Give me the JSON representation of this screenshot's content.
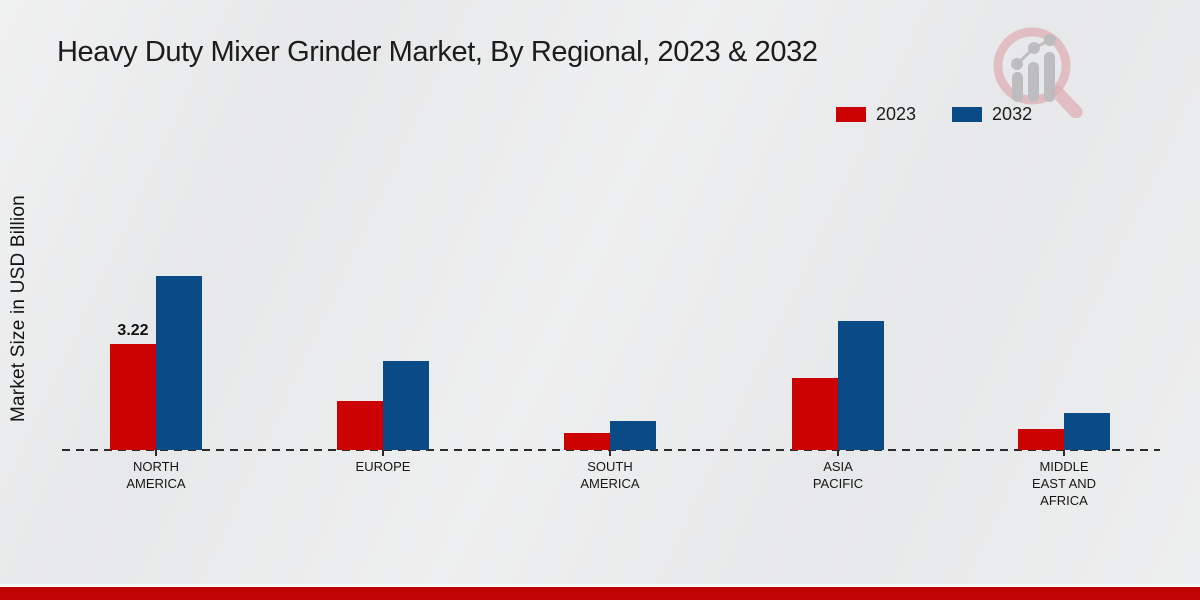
{
  "header": {
    "logo_icon": "magnifier-bar-chart-icon"
  },
  "colors": {
    "series_2023": "#cc0101",
    "series_2032": "#0a4a86",
    "footer_band": "#c00404",
    "background": "#e7e8e9",
    "axis": "#2b2b2b"
  },
  "chart_data": {
    "type": "bar",
    "title": "Heavy Duty Mixer Grinder Market, By Regional, 2023 & 2032",
    "xlabel": "",
    "ylabel": "Market Size in USD Billion",
    "categories": [
      "NORTH AMERICA",
      "EUROPE",
      "SOUTH AMERICA",
      "ASIA PACIFIC",
      "MIDDLE EAST AND AFRICA"
    ],
    "series": [
      {
        "name": "2023",
        "color": "#cc0101",
        "values": [
          3.22,
          1.5,
          0.51,
          2.18,
          0.64
        ]
      },
      {
        "name": "2032",
        "color": "#0a4a86",
        "values": [
          5.29,
          2.71,
          0.88,
          3.93,
          1.11
        ]
      }
    ],
    "data_labels": [
      {
        "series": "2023",
        "category": "NORTH AMERICA",
        "text": "3.22"
      }
    ],
    "ylim": [
      0,
      6
    ],
    "grid": false,
    "legend_position": "top-right",
    "baseline_style": "dashed",
    "value_unit": "USD Billion"
  }
}
